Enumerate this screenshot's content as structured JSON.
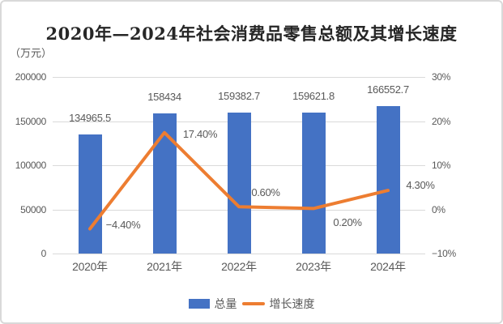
{
  "title": "2020年—2024年社会消费品零售总额及其增长速度",
  "unit_label": "（万元）",
  "colors": {
    "bar": "#4472C4",
    "line": "#ED7D31",
    "grid": "#D9D9D9",
    "text": "#595959"
  },
  "legend": {
    "bar_label": "总量",
    "line_label": "增长速度"
  },
  "chart_data": {
    "type": "bar",
    "subtype": "combo bar+line, dual axis",
    "title": "2020年—2024年社会消费品零售总额及其增长速度",
    "categories": [
      "2020年",
      "2021年",
      "2022年",
      "2023年",
      "2024年"
    ],
    "series": [
      {
        "name": "总量",
        "type": "bar",
        "axis": "left",
        "values": [
          134965.5,
          158434,
          159382.7,
          159621.8,
          166552.7
        ],
        "labels": [
          "134965.5",
          "158434",
          "159382.7",
          "159621.8",
          "166552.7"
        ]
      },
      {
        "name": "增长速度",
        "type": "line",
        "axis": "right",
        "values": [
          -4.4,
          17.4,
          0.6,
          0.2,
          4.3
        ],
        "labels": [
          "−4.40%",
          "17.40%",
          "0.60%",
          "0.20%",
          "4.30%"
        ]
      }
    ],
    "left_axis": {
      "unit": "万元",
      "min": 0,
      "max": 200000,
      "ticks": [
        "200000",
        "150000",
        "100000",
        "50000",
        "0"
      ]
    },
    "right_axis": {
      "min": -10,
      "max": 30,
      "ticks": [
        "30%",
        "20%",
        "10%",
        "0%",
        "−10%"
      ]
    },
    "grid": true,
    "legend_position": "bottom"
  }
}
